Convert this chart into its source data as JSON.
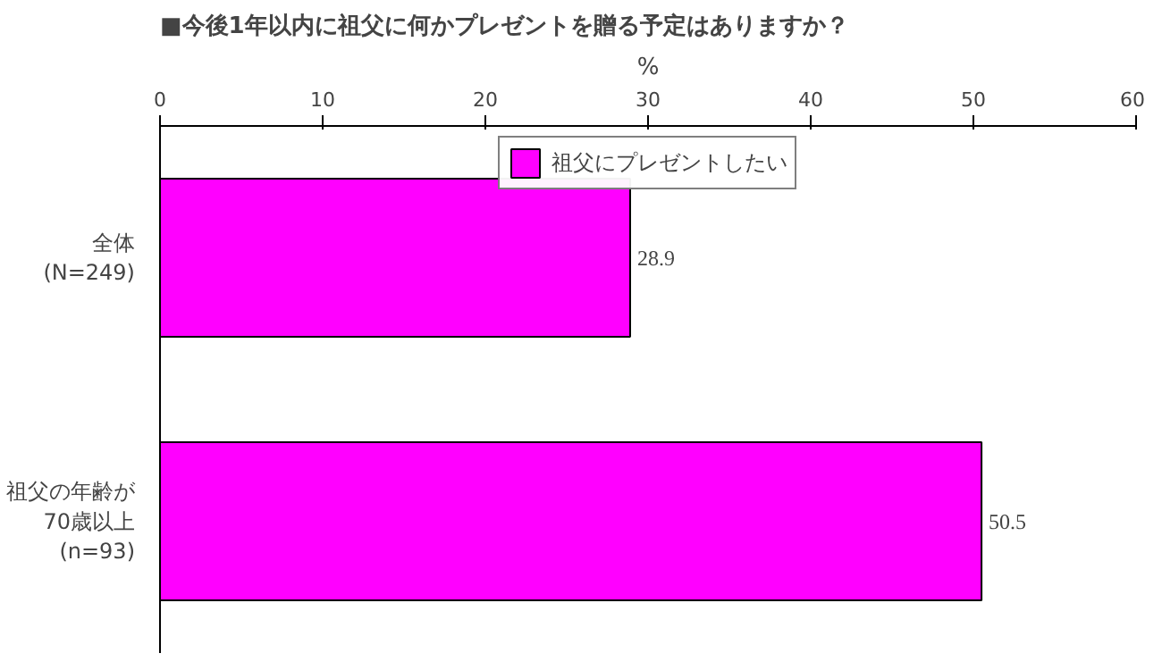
{
  "chart_data": {
    "type": "bar",
    "orientation": "horizontal",
    "title": "■今後1年以内に祖父に何かプレゼントを贈る予定はありますか？",
    "xlabel": "%",
    "categories": [
      "全体\n(N=249)",
      "祖父の年齢が\n70歳以上\n(n=93)"
    ],
    "series": [
      {
        "name": "祖父にプレゼントしたい",
        "color": "#ff00ff",
        "values": [
          28.9,
          50.5
        ]
      }
    ],
    "xlim": [
      0,
      60
    ],
    "xticks": [
      0,
      10,
      20,
      30,
      40,
      50,
      60
    ],
    "data_labels": true,
    "legend": "top",
    "grid": false
  }
}
